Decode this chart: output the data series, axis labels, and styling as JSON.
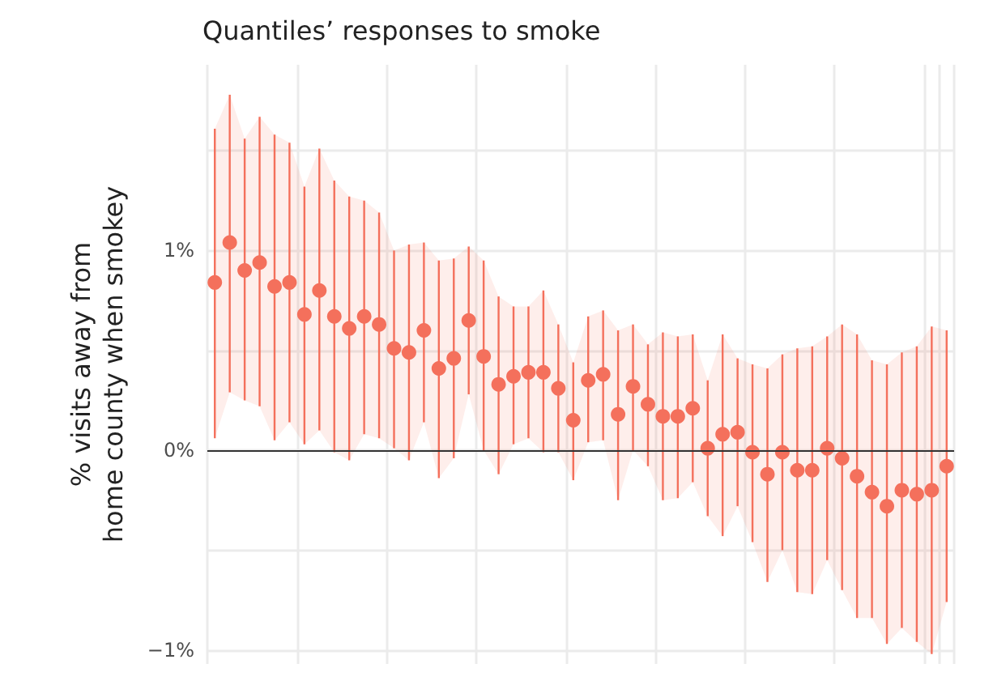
{
  "chart_data": {
    "type": "scatter",
    "title": "Quantiles’ responses to smoke",
    "ylabel": "% visits away from\nhome county when smokey",
    "categories": [
      null,
      null,
      null,
      null,
      null,
      null,
      null,
      null,
      null,
      null,
      null,
      null,
      null,
      null,
      null,
      null,
      null,
      null,
      null,
      null,
      null,
      null,
      null,
      null,
      null,
      null,
      null,
      null,
      null,
      null,
      null,
      null,
      null,
      null,
      null,
      null,
      null,
      null,
      null,
      null,
      null,
      null,
      null,
      null,
      null,
      null,
      null,
      null,
      null,
      null
    ],
    "series": [
      {
        "color": "#f4705c",
        "values": [
          0.84,
          1.04,
          0.9,
          0.94,
          0.82,
          0.84,
          0.68,
          0.8,
          0.67,
          0.61,
          0.67,
          0.63,
          0.51,
          0.49,
          0.6,
          0.41,
          0.46,
          0.65,
          0.47,
          0.33,
          0.37,
          0.39,
          0.39,
          0.31,
          0.15,
          0.35,
          0.38,
          0.18,
          0.32,
          0.23,
          0.17,
          0.17,
          0.21,
          0.01,
          0.08,
          0.09,
          -0.01,
          -0.12,
          -0.01,
          -0.1,
          -0.1,
          0.01,
          -0.04,
          -0.13,
          -0.21,
          -0.28,
          -0.2,
          -0.22,
          -0.2,
          -0.08
        ],
        "lower": [
          0.06,
          0.29,
          0.25,
          0.22,
          0.05,
          0.14,
          0.03,
          0.1,
          -0.01,
          -0.05,
          0.08,
          0.06,
          0.01,
          -0.05,
          0.14,
          -0.14,
          -0.04,
          0.28,
          0.0,
          -0.12,
          0.03,
          0.06,
          -0.01,
          -0.01,
          -0.15,
          0.04,
          0.05,
          -0.25,
          0.0,
          -0.08,
          -0.25,
          -0.24,
          -0.16,
          -0.33,
          -0.43,
          -0.28,
          -0.46,
          -0.66,
          -0.5,
          -0.71,
          -0.72,
          -0.55,
          -0.7,
          -0.84,
          -0.84,
          -0.97,
          -0.89,
          -0.96,
          -1.02,
          -0.76
        ],
        "upper": [
          1.61,
          1.78,
          1.56,
          1.67,
          1.58,
          1.54,
          1.32,
          1.51,
          1.35,
          1.27,
          1.25,
          1.19,
          1.0,
          1.03,
          1.04,
          0.95,
          0.96,
          1.02,
          0.95,
          0.77,
          0.72,
          0.72,
          0.8,
          0.63,
          0.44,
          0.67,
          0.7,
          0.6,
          0.63,
          0.53,
          0.59,
          0.57,
          0.58,
          0.35,
          0.58,
          0.46,
          0.43,
          0.41,
          0.48,
          0.51,
          0.52,
          0.57,
          0.63,
          0.58,
          0.45,
          0.43,
          0.49,
          0.52,
          0.62,
          0.6
        ],
        "errors": [
          [
            0.06,
            1.61
          ],
          [
            0.29,
            1.78
          ],
          [
            0.25,
            1.56
          ],
          [
            0.22,
            1.67
          ],
          [
            0.05,
            1.58
          ],
          [
            0.14,
            1.54
          ],
          [
            0.03,
            1.32
          ],
          [
            0.1,
            1.51
          ],
          [
            -0.01,
            1.35
          ],
          [
            -0.05,
            1.27
          ],
          [
            0.08,
            1.25
          ],
          [
            0.06,
            1.19
          ],
          [
            0.01,
            1.0
          ],
          [
            -0.05,
            1.03
          ],
          [
            0.14,
            1.04
          ],
          [
            -0.14,
            0.95
          ],
          [
            -0.04,
            0.96
          ],
          [
            0.28,
            1.02
          ],
          [
            0.0,
            0.95
          ],
          [
            -0.12,
            0.77
          ],
          [
            0.03,
            0.72
          ],
          [
            0.06,
            0.72
          ],
          [
            -0.01,
            0.8
          ],
          [
            -0.01,
            0.63
          ],
          [
            -0.15,
            0.44
          ],
          [
            0.04,
            0.67
          ],
          [
            0.05,
            0.7
          ],
          [
            -0.25,
            0.6
          ],
          [
            0.0,
            0.63
          ],
          [
            -0.08,
            0.53
          ],
          [
            -0.25,
            0.59
          ],
          [
            -0.24,
            0.57
          ],
          [
            -0.16,
            0.58
          ],
          [
            -0.33,
            0.35
          ],
          [
            -0.43,
            0.58
          ],
          [
            -0.28,
            0.46
          ],
          [
            -0.46,
            0.43
          ],
          [
            -0.66,
            0.41
          ],
          [
            -0.5,
            0.48
          ],
          [
            -0.71,
            0.51
          ],
          [
            -0.72,
            0.52
          ],
          [
            -0.55,
            0.57
          ],
          [
            -0.7,
            0.63
          ],
          [
            -0.84,
            0.58
          ],
          [
            -0.84,
            0.45
          ],
          [
            -0.97,
            0.43
          ],
          [
            -0.89,
            0.49
          ],
          [
            -0.96,
            0.52
          ],
          [
            -1.02,
            0.62
          ],
          [
            -0.76,
            0.6
          ]
        ]
      }
    ],
    "ylim": [
      -1.07,
      1.93
    ],
    "yticks": [
      {
        "value": -1,
        "label": "−1%"
      },
      {
        "value": -0.5,
        "label": null
      },
      {
        "value": 0,
        "label": "0%"
      },
      {
        "value": 0.5,
        "label": null
      },
      {
        "value": 1,
        "label": "1%"
      },
      {
        "value": 1.5,
        "label": null
      }
    ],
    "ref_lines": [
      {
        "axis": "y",
        "value": 0,
        "color": "#333333"
      }
    ],
    "grid": true,
    "tick_labels": "y",
    "marker": "circle"
  }
}
